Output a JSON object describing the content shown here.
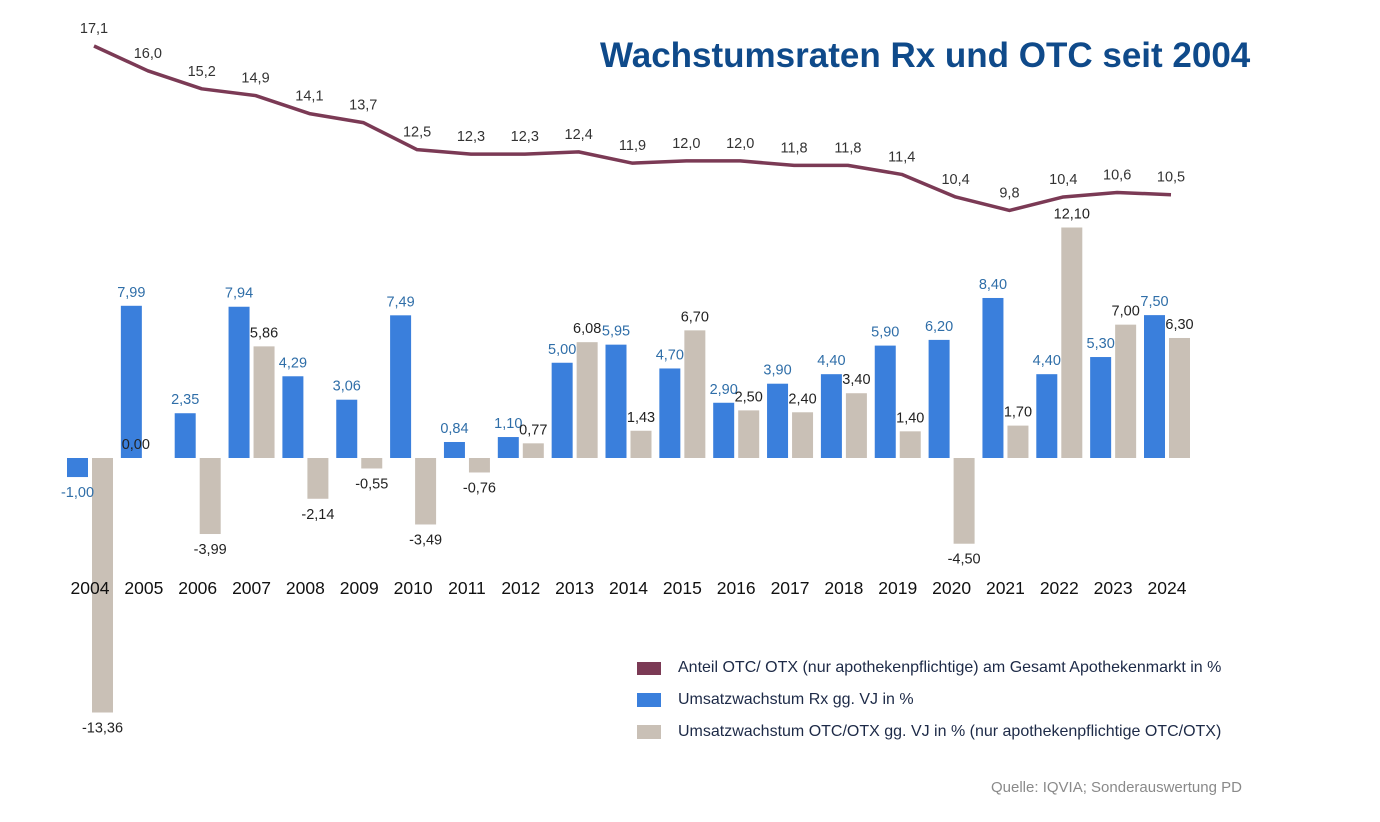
{
  "title": "Wachstumsraten Rx und OTC seit 2004",
  "source": "Quelle: IQVIA; Sonderauswertung PD",
  "colors": {
    "line": "#7b3a55",
    "rx": "#3a7fdc",
    "otc": "#c9c0b6",
    "rx_label": "#2f6ea8",
    "otc_label": "#222222",
    "line_label": "#333333",
    "title": "#0f4a8a"
  },
  "legend": [
    {
      "key": "share",
      "label": "Anteil OTC/ OTX (nur apothekenpflichtige) am Gesamt Apothekenmarkt in %",
      "swatch": "line",
      "color": "#7b3a55"
    },
    {
      "key": "rx",
      "label": "Umsatzwachstum Rx gg. VJ in %",
      "swatch": "box",
      "color": "#3a7fdc"
    },
    {
      "key": "otc",
      "label": "Umsatzwachstum OTC/OTX gg. VJ in % (nur apothekenpflichtige OTC/OTX)",
      "swatch": "box",
      "color": "#c9c0b6"
    }
  ],
  "chart_data": {
    "type": "bar",
    "categories": [
      "2004",
      "2005",
      "2006",
      "2007",
      "2008",
      "2009",
      "2010",
      "2011",
      "2012",
      "2013",
      "2014",
      "2015",
      "2016",
      "2017",
      "2018",
      "2019",
      "2020",
      "2021",
      "2022",
      "2023",
      "2024"
    ],
    "series": [
      {
        "key": "rx",
        "name": "Umsatzwachstum Rx gg. VJ in %",
        "type": "bar",
        "values": [
          -1.0,
          7.99,
          2.35,
          7.94,
          4.29,
          3.06,
          7.49,
          0.84,
          1.1,
          5.0,
          5.95,
          4.7,
          2.9,
          3.9,
          4.4,
          5.9,
          6.2,
          8.4,
          4.4,
          5.3,
          7.5
        ],
        "labels": [
          "-1,00",
          "7,99",
          "2,35",
          "7,94",
          "4,29",
          "3,06",
          "7,49",
          "0,84",
          "1,10",
          "5,00",
          "5,95",
          "4,70",
          "2,90",
          "3,90",
          "4,40",
          "5,90",
          "6,20",
          "8,40",
          "4,40",
          "5,30",
          "7,50"
        ]
      },
      {
        "key": "otc",
        "name": "Umsatzwachstum OTC/OTX gg. VJ in % (nur apothekenpflichtige OTC/OTX)",
        "type": "bar",
        "values": [
          -13.36,
          0.0,
          -3.99,
          5.86,
          -2.14,
          -0.55,
          -3.49,
          -0.76,
          0.77,
          6.08,
          1.43,
          6.7,
          2.5,
          2.4,
          3.4,
          1.4,
          -4.5,
          1.7,
          12.1,
          7.0,
          6.3
        ],
        "labels": [
          "-13,36",
          "0,00",
          "-3,99",
          "5,86",
          "-2,14",
          "-0,55",
          "-3,49",
          "-0,76",
          "0,77",
          "6,08",
          "1,43",
          "6,70",
          "2,50",
          "2,40",
          "3,40",
          "1,40",
          "-4,50",
          "1,70",
          "12,10",
          "7,00",
          "6,30"
        ]
      },
      {
        "key": "share",
        "name": "Anteil OTC/ OTX (nur apothekenpflichtige) am Gesamt Apothekenmarkt in %",
        "type": "line",
        "values": [
          17.1,
          16.0,
          15.2,
          14.9,
          14.1,
          13.7,
          12.5,
          12.3,
          12.3,
          12.4,
          11.9,
          12.0,
          12.0,
          11.8,
          11.8,
          11.4,
          10.4,
          9.8,
          10.4,
          10.6,
          10.5
        ],
        "labels": [
          "17,1",
          "16,0",
          "15,2",
          "14,9",
          "14,1",
          "13,7",
          "12,5",
          "12,3",
          "12,3",
          "12,4",
          "11,9",
          "12,0",
          "12,0",
          "11,8",
          "11,8",
          "11,4",
          "10,4",
          "9,8",
          "10,4",
          "10,6",
          "10,5"
        ]
      }
    ],
    "grid": false,
    "legend_position": "bottom-right"
  }
}
